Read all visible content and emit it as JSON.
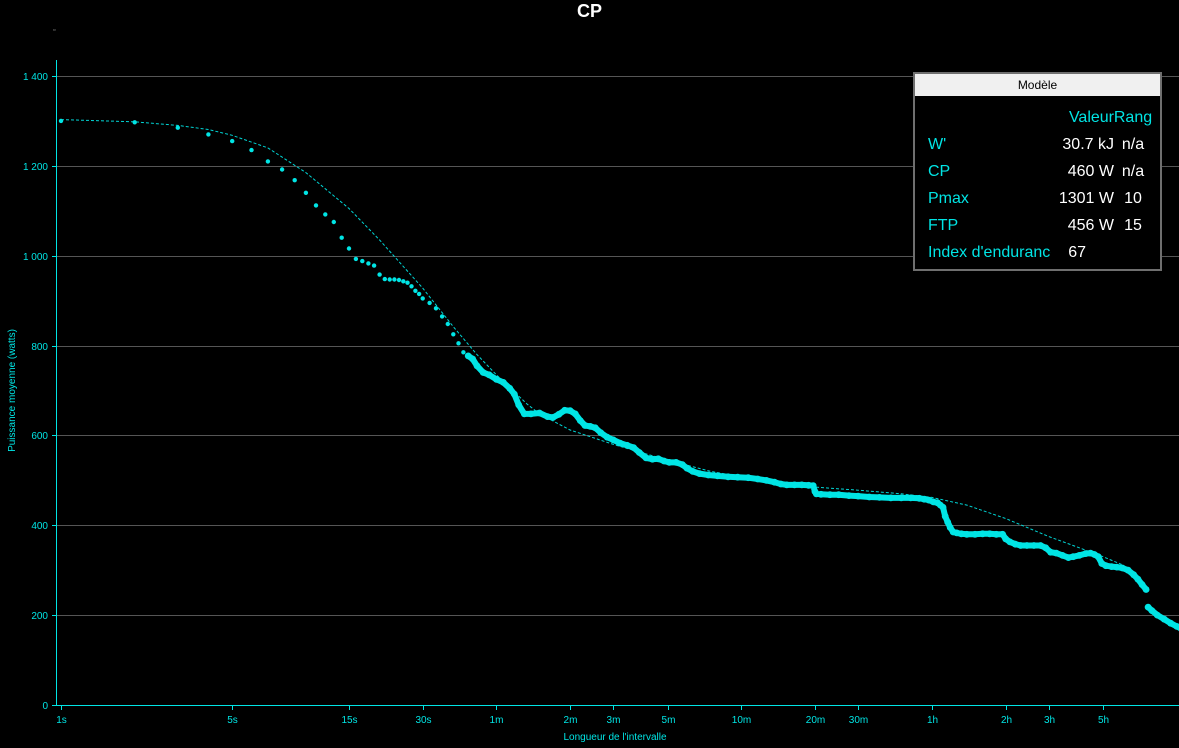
{
  "chart_data": {
    "type": "scatter",
    "title": "CP",
    "xlabel": "Longueur de l'intervalle",
    "ylabel": "Puissance moyenne (watts)",
    "x_scale": "log",
    "x_unit": "seconds",
    "xlim": [
      1,
      37800
    ],
    "ylim": [
      0,
      1400
    ],
    "x_ticks": [
      {
        "label": "1s",
        "value": 1
      },
      {
        "label": "5s",
        "value": 5
      },
      {
        "label": "15s",
        "value": 15
      },
      {
        "label": "30s",
        "value": 30
      },
      {
        "label": "1m",
        "value": 60
      },
      {
        "label": "2m",
        "value": 120
      },
      {
        "label": "3m",
        "value": 180
      },
      {
        "label": "5m",
        "value": 300
      },
      {
        "label": "10m",
        "value": 600
      },
      {
        "label": "20m",
        "value": 1200
      },
      {
        "label": "30m",
        "value": 1800
      },
      {
        "label": "1h",
        "value": 3600
      },
      {
        "label": "2h",
        "value": 7200
      },
      {
        "label": "3h",
        "value": 10800
      },
      {
        "label": "5h",
        "value": 18000
      }
    ],
    "y_ticks": [
      {
        "label": "0",
        "value": 0
      },
      {
        "label": "200",
        "value": 200
      },
      {
        "label": "400",
        "value": 400
      },
      {
        "label": "600",
        "value": 600
      },
      {
        "label": "800",
        "value": 800
      },
      {
        "label": "1 000",
        "value": 1000
      },
      {
        "label": "1 200",
        "value": 1200
      },
      {
        "label": "1 400",
        "value": 1400
      }
    ],
    "grid": true,
    "colors": {
      "background": "#000000",
      "grid": "#555555",
      "axis": "#00e5e5",
      "points": "#00e5e5",
      "model_line": "#00d5d5"
    },
    "series": [
      {
        "style": "points",
        "points": [
          [
            1,
            1300
          ],
          [
            2,
            1297
          ],
          [
            3,
            1285
          ],
          [
            4,
            1270
          ],
          [
            5,
            1255
          ],
          [
            6,
            1235
          ],
          [
            7,
            1210
          ],
          [
            8,
            1192
          ],
          [
            9,
            1168
          ],
          [
            10,
            1140
          ],
          [
            11,
            1112
          ],
          [
            12,
            1092
          ],
          [
            13,
            1075
          ],
          [
            14,
            1040
          ],
          [
            15,
            1016
          ],
          [
            16,
            993
          ],
          [
            17,
            988
          ],
          [
            18,
            983
          ],
          [
            19,
            978
          ],
          [
            20,
            958
          ],
          [
            21,
            948
          ],
          [
            22,
            947
          ],
          [
            23,
            947
          ],
          [
            24,
            946
          ],
          [
            25,
            943
          ],
          [
            26,
            940
          ],
          [
            27,
            932
          ],
          [
            28,
            922
          ],
          [
            29,
            915
          ],
          [
            30,
            905
          ],
          [
            32,
            895
          ],
          [
            34,
            883
          ],
          [
            36,
            865
          ],
          [
            38,
            848
          ],
          [
            40,
            825
          ],
          [
            42,
            805
          ],
          [
            44,
            785
          ],
          [
            46,
            777
          ],
          [
            48,
            770
          ],
          [
            50,
            755
          ],
          [
            53,
            740
          ],
          [
            56,
            735
          ],
          [
            60,
            725
          ],
          [
            64,
            718
          ],
          [
            68,
            705
          ],
          [
            71,
            692
          ],
          [
            74,
            668
          ],
          [
            78,
            648
          ],
          [
            83,
            648
          ],
          [
            90,
            650
          ],
          [
            97,
            642
          ],
          [
            102,
            640
          ],
          [
            108,
            647
          ],
          [
            114,
            656
          ],
          [
            120,
            655
          ],
          [
            126,
            648
          ],
          [
            132,
            633
          ],
          [
            138,
            622
          ],
          [
            145,
            620
          ],
          [
            152,
            617
          ],
          [
            160,
            606
          ],
          [
            170,
            596
          ],
          [
            180,
            590
          ],
          [
            192,
            583
          ],
          [
            205,
            578
          ],
          [
            218,
            573
          ],
          [
            230,
            562
          ],
          [
            245,
            550
          ],
          [
            260,
            547
          ],
          [
            275,
            548
          ],
          [
            290,
            543
          ],
          [
            305,
            540
          ],
          [
            325,
            540
          ],
          [
            345,
            535
          ],
          [
            360,
            527
          ],
          [
            380,
            520
          ],
          [
            405,
            515
          ],
          [
            440,
            512
          ],
          [
            480,
            510
          ],
          [
            530,
            508
          ],
          [
            580,
            507
          ],
          [
            640,
            506
          ],
          [
            700,
            503
          ],
          [
            760,
            500
          ],
          [
            820,
            496
          ],
          [
            870,
            492
          ],
          [
            920,
            490
          ],
          [
            990,
            490
          ],
          [
            1060,
            490
          ],
          [
            1130,
            489
          ],
          [
            1180,
            488
          ],
          [
            1200,
            475
          ],
          [
            1215,
            470
          ],
          [
            1270,
            469
          ],
          [
            1380,
            468
          ],
          [
            1500,
            468
          ],
          [
            1650,
            466
          ],
          [
            1800,
            465
          ],
          [
            2000,
            463
          ],
          [
            2200,
            462
          ],
          [
            2450,
            461
          ],
          [
            2700,
            461
          ],
          [
            2950,
            461
          ],
          [
            3200,
            460
          ],
          [
            3350,
            458
          ],
          [
            3500,
            456
          ],
          [
            3650,
            452
          ],
          [
            3800,
            450
          ],
          [
            3900,
            445
          ],
          [
            4000,
            440
          ],
          [
            4080,
            420
          ],
          [
            4180,
            407
          ],
          [
            4280,
            395
          ],
          [
            4400,
            385
          ],
          [
            4550,
            383
          ],
          [
            4750,
            381
          ],
          [
            5000,
            380
          ],
          [
            5400,
            380
          ],
          [
            5800,
            381
          ],
          [
            6200,
            381
          ],
          [
            6600,
            380
          ],
          [
            7000,
            380
          ],
          [
            7200,
            370
          ],
          [
            7500,
            363
          ],
          [
            7900,
            358
          ],
          [
            8300,
            355
          ],
          [
            8800,
            355
          ],
          [
            9400,
            355
          ],
          [
            10000,
            355
          ],
          [
            10500,
            350
          ],
          [
            11000,
            340
          ],
          [
            11600,
            338
          ],
          [
            12300,
            333
          ],
          [
            13000,
            328
          ],
          [
            13600,
            330
          ],
          [
            14400,
            333
          ],
          [
            15300,
            337
          ],
          [
            16000,
            338
          ],
          [
            16600,
            335
          ],
          [
            17200,
            330
          ],
          [
            17800,
            315
          ],
          [
            18500,
            310
          ],
          [
            19500,
            308
          ],
          [
            20500,
            307
          ],
          [
            21600,
            305
          ],
          [
            22800,
            300
          ],
          [
            24000,
            290
          ],
          [
            25000,
            280
          ],
          [
            26000,
            268
          ],
          [
            27000,
            257
          ],
          [
            27500,
            218
          ],
          [
            28500,
            210
          ],
          [
            30000,
            200
          ],
          [
            32000,
            191
          ],
          [
            34000,
            182
          ],
          [
            36000,
            175
          ],
          [
            37500,
            170
          ]
        ]
      },
      {
        "style": "dashed-line",
        "points": [
          [
            1,
            1303
          ],
          [
            2,
            1298
          ],
          [
            3,
            1290
          ],
          [
            4,
            1281
          ],
          [
            5,
            1268
          ],
          [
            7,
            1240
          ],
          [
            10,
            1185
          ],
          [
            15,
            1105
          ],
          [
            20,
            1035
          ],
          [
            30,
            928
          ],
          [
            40,
            842
          ],
          [
            50,
            780
          ],
          [
            60,
            735
          ],
          [
            70,
            700
          ],
          [
            80,
            670
          ],
          [
            90,
            648
          ],
          [
            120,
            612
          ],
          [
            180,
            580
          ],
          [
            300,
            545
          ],
          [
            450,
            520
          ],
          [
            600,
            508
          ],
          [
            900,
            492
          ],
          [
            1200,
            485
          ],
          [
            1800,
            478
          ],
          [
            2700,
            470
          ],
          [
            3600,
            462
          ],
          [
            5000,
            445
          ],
          [
            7200,
            415
          ],
          [
            10800,
            375
          ],
          [
            14400,
            350
          ],
          [
            18000,
            330
          ],
          [
            21600,
            312
          ]
        ]
      }
    ]
  },
  "model_panel": {
    "header": "Modèle",
    "columns": {
      "value": "Valeur",
      "rank": "Rang"
    },
    "rows": [
      {
        "name": "W'",
        "value": "30.7 kJ",
        "rank": "n/a"
      },
      {
        "name": "CP",
        "value": "460 W",
        "rank": "n/a"
      },
      {
        "name": "Pmax",
        "value": "1301 W",
        "rank": "10"
      },
      {
        "name": "FTP",
        "value": "456 W",
        "rank": "15"
      },
      {
        "name": "Index d'endurance",
        "value": "67",
        "rank": ""
      }
    ]
  },
  "corner_mark": "▫"
}
